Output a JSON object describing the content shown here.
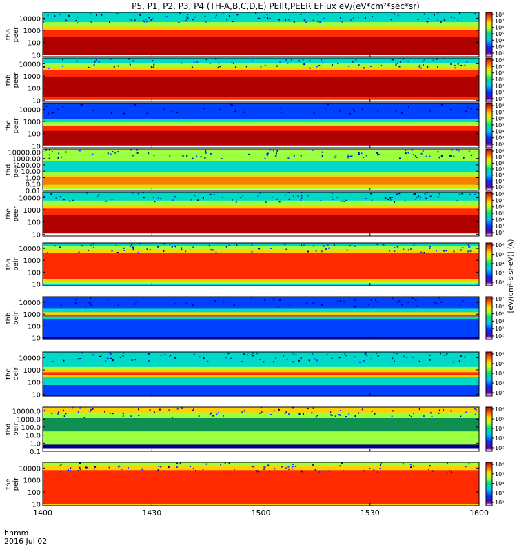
{
  "title": "P5, P1, P2, P3, P4 (TH-A,B,C,D,E) PEIR,PEER EFlux eV/(eV*cm²*sec*sr)",
  "time_axis": {
    "label": "hhmm",
    "date": "2016 Jul 02",
    "ticks": [
      "1400",
      "1430",
      "1500",
      "1530",
      "1600"
    ],
    "range_minutes": [
      0,
      120
    ]
  },
  "colorbar_label": "[eV/(cm²-s-sr-eV)] (A)",
  "colors": {
    "saturated": "#b00000",
    "high": "#ff2a00",
    "mid_high": "#ffd000",
    "mid": "#9cff40",
    "mid_low": "#00d8c8",
    "low": "#0040ff",
    "floor": "#000080",
    "gap": "#ffffff"
  },
  "chart_data": [
    {
      "type": "heatmap",
      "probe": "tha",
      "species": "peer",
      "ylabel": "tha peer",
      "y_ticks": [
        "10000",
        "1000",
        "100",
        "10"
      ],
      "y_scale": "log",
      "y_range_eV": [
        7,
        30000
      ],
      "cbar_ticks": [
        "10⁸",
        "10⁷",
        "10⁶",
        "10⁵",
        "10⁴",
        "10³",
        "10²"
      ]
    },
    {
      "type": "heatmap",
      "probe": "thb",
      "species": "peer",
      "ylabel": "thb peer",
      "y_ticks": [
        "10000",
        "1000",
        "100",
        "10"
      ],
      "y_scale": "log",
      "y_range_eV": [
        7,
        30000
      ],
      "cbar_ticks": [
        "10⁸",
        "10⁷",
        "10⁶",
        "10⁵",
        "10⁴",
        "10³",
        "10²"
      ]
    },
    {
      "type": "heatmap",
      "probe": "thc",
      "species": "peer",
      "ylabel": "thc peer",
      "y_ticks": [
        "10000",
        "1000",
        "100",
        "10"
      ],
      "y_scale": "log",
      "y_range_eV": [
        7,
        30000
      ],
      "cbar_ticks": [
        "10⁸",
        "10⁷",
        "10⁶",
        "10⁵",
        "10⁴",
        "10³",
        "10²"
      ]
    },
    {
      "type": "heatmap",
      "probe": "thd",
      "species": "peer",
      "ylabel": "thd peer",
      "y_ticks": [
        "10000.00",
        "1000.00",
        "100.00",
        "10.00",
        "1.00",
        "0.10",
        "0.01"
      ],
      "y_scale": "log",
      "y_range_eV": [
        0.01,
        30000
      ],
      "cbar_ticks": [
        "10⁸",
        "10⁷",
        "10⁶",
        "10⁵",
        "10⁴",
        "10³",
        "10²"
      ]
    },
    {
      "type": "heatmap",
      "probe": "the",
      "species": "peer",
      "ylabel": "the peer",
      "y_ticks": [
        "10000",
        "1000",
        "100",
        "10"
      ],
      "y_scale": "log",
      "y_range_eV": [
        7,
        30000
      ],
      "cbar_ticks": [
        "10⁸",
        "10⁷",
        "10⁶",
        "10⁵",
        "10⁴",
        "10³",
        "10²"
      ]
    },
    {
      "type": "heatmap",
      "probe": "tha",
      "species": "peir",
      "ylabel": "tha peir",
      "y_ticks": [
        "10000",
        "1000",
        "100",
        "10"
      ],
      "y_scale": "log",
      "y_range_eV": [
        7,
        30000
      ],
      "cbar_ticks": [
        "10⁶",
        "10⁵",
        "10⁴",
        "10³",
        "10²"
      ]
    },
    {
      "type": "heatmap",
      "probe": "thb",
      "species": "peir",
      "ylabel": "thb peir",
      "y_ticks": [
        "10000",
        "1000",
        "100",
        "10"
      ],
      "y_scale": "log",
      "y_range_eV": [
        7,
        30000
      ],
      "cbar_ticks": [
        "10⁷",
        "10⁶",
        "10⁵",
        "10⁴",
        "10³",
        "10²"
      ]
    },
    {
      "type": "heatmap",
      "probe": "thc",
      "species": "peir",
      "ylabel": "thc peir",
      "y_ticks": [
        "10000",
        "1000",
        "100",
        "10"
      ],
      "y_scale": "log",
      "y_range_eV": [
        7,
        30000
      ],
      "cbar_ticks": [
        "10⁶",
        "10⁵",
        "10⁴",
        "10³",
        "10²"
      ]
    },
    {
      "type": "heatmap",
      "probe": "thd",
      "species": "peir",
      "ylabel": "thd peir",
      "y_ticks": [
        "10000.0",
        "1000.0",
        "100.0",
        "10.0",
        "1.0",
        "0.1"
      ],
      "y_scale": "log",
      "y_range_eV": [
        0.1,
        30000
      ],
      "cbar_ticks": [
        "10⁶",
        "10⁵",
        "10⁴",
        "10³",
        "10²"
      ]
    },
    {
      "type": "heatmap",
      "probe": "the",
      "species": "peir",
      "ylabel": "the peir",
      "y_ticks": [
        "10000",
        "1000",
        "100",
        "10"
      ],
      "y_scale": "log",
      "y_range_eV": [
        7,
        30000
      ],
      "cbar_ticks": [
        "10⁶",
        "10⁵",
        "10⁴",
        "10³",
        "10²"
      ]
    }
  ]
}
